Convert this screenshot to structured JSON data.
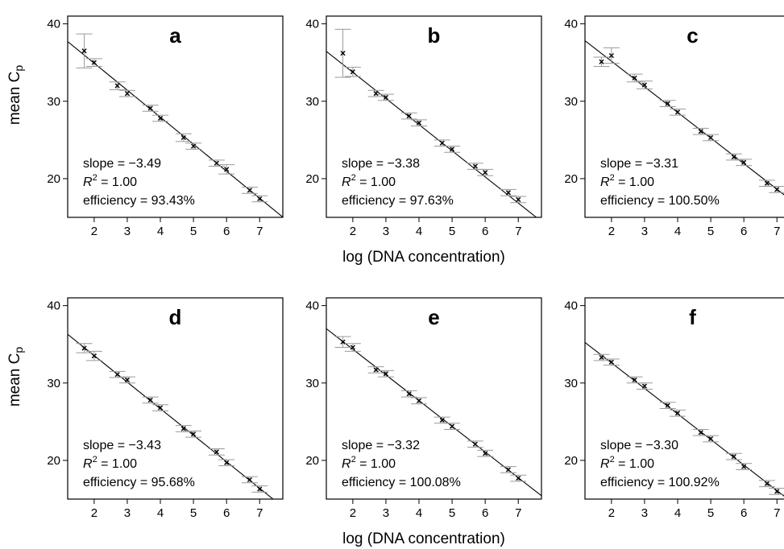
{
  "figure": {
    "xlabel": "log (DNA concentration)",
    "ylabel_main": "mean C",
    "ylabel_sub": "p"
  },
  "chart_data": [
    {
      "type": "scatter",
      "panel": "a",
      "xlim": [
        1.2,
        7.7
      ],
      "ylim": [
        15,
        41
      ],
      "xticks": [
        2,
        3,
        4,
        5,
        6,
        7
      ],
      "yticks": [
        20,
        30,
        40
      ],
      "points": [
        [
          1.7,
          36.5
        ],
        [
          2.0,
          35.0
        ],
        [
          2.7,
          32.0
        ],
        [
          3.0,
          31.0
        ],
        [
          3.7,
          29.1
        ],
        [
          4.0,
          27.8
        ],
        [
          4.7,
          25.3
        ],
        [
          5.0,
          24.2
        ],
        [
          5.7,
          22.0
        ],
        [
          6.0,
          21.2
        ],
        [
          6.7,
          18.5
        ],
        [
          7.0,
          17.4
        ]
      ],
      "errors": [
        2.2,
        0.5,
        0.5,
        0.4,
        0.4,
        0.4,
        0.5,
        0.4,
        0.4,
        0.6,
        0.4,
        0.4
      ],
      "fit": {
        "slope": -3.49,
        "intercept": 41.9
      },
      "annotations": {
        "slope": "slope = −3.49",
        "r2_value": " = 1.00",
        "efficiency": "efficiency = 93.43%"
      }
    },
    {
      "type": "scatter",
      "panel": "b",
      "xlim": [
        1.2,
        7.7
      ],
      "ylim": [
        15,
        41
      ],
      "xticks": [
        2,
        3,
        4,
        5,
        6,
        7
      ],
      "yticks": [
        20,
        30,
        40
      ],
      "points": [
        [
          1.7,
          36.2
        ],
        [
          2.0,
          33.8
        ],
        [
          2.7,
          31.0
        ],
        [
          3.0,
          30.5
        ],
        [
          3.7,
          28.1
        ],
        [
          4.0,
          27.2
        ],
        [
          4.7,
          24.6
        ],
        [
          5.0,
          23.8
        ],
        [
          5.7,
          21.6
        ],
        [
          6.0,
          20.8
        ],
        [
          6.7,
          18.2
        ],
        [
          7.0,
          17.3
        ]
      ],
      "errors": [
        3.1,
        0.6,
        0.4,
        0.4,
        0.4,
        0.4,
        0.4,
        0.4,
        0.4,
        0.4,
        0.4,
        0.4
      ],
      "fit": {
        "slope": -3.38,
        "intercept": 40.5
      },
      "annotations": {
        "slope": "slope = −3.38",
        "r2_value": " = 1.00",
        "efficiency": "efficiency = 97.63%"
      }
    },
    {
      "type": "scatter",
      "panel": "c",
      "xlim": [
        1.2,
        7.7
      ],
      "ylim": [
        15,
        41
      ],
      "xticks": [
        2,
        3,
        4,
        5,
        6,
        7
      ],
      "yticks": [
        20,
        30,
        40
      ],
      "points": [
        [
          1.7,
          35.1
        ],
        [
          2.0,
          35.9
        ],
        [
          2.7,
          33.0
        ],
        [
          3.0,
          32.1
        ],
        [
          3.7,
          29.7
        ],
        [
          4.0,
          28.6
        ],
        [
          4.7,
          26.1
        ],
        [
          5.0,
          25.3
        ],
        [
          5.7,
          22.8
        ],
        [
          6.0,
          22.1
        ],
        [
          6.7,
          19.4
        ],
        [
          7.0,
          18.6
        ]
      ],
      "errors": [
        0.6,
        1.0,
        0.5,
        0.5,
        0.4,
        0.4,
        0.4,
        0.4,
        0.4,
        0.4,
        0.4,
        0.4
      ],
      "fit": {
        "slope": -3.31,
        "intercept": 41.8
      },
      "annotations": {
        "slope": "slope = −3.31",
        "r2_value": " = 1.00",
        "efficiency": "efficiency = 100.50%"
      }
    },
    {
      "type": "scatter",
      "panel": "d",
      "xlim": [
        1.2,
        7.7
      ],
      "ylim": [
        15,
        41
      ],
      "xticks": [
        2,
        3,
        4,
        5,
        6,
        7
      ],
      "yticks": [
        20,
        30,
        40
      ],
      "points": [
        [
          1.7,
          34.5
        ],
        [
          2.0,
          33.5
        ],
        [
          2.7,
          31.1
        ],
        [
          3.0,
          30.4
        ],
        [
          3.7,
          27.8
        ],
        [
          4.0,
          26.8
        ],
        [
          4.7,
          24.1
        ],
        [
          5.0,
          23.4
        ],
        [
          5.7,
          21.1
        ],
        [
          6.0,
          19.7
        ],
        [
          6.7,
          17.5
        ],
        [
          7.0,
          16.3
        ]
      ],
      "errors": [
        0.6,
        0.6,
        0.4,
        0.4,
        0.4,
        0.4,
        0.4,
        0.4,
        0.4,
        0.4,
        0.4,
        0.4
      ],
      "fit": {
        "slope": -3.43,
        "intercept": 40.4
      },
      "annotations": {
        "slope": "slope = −3.43",
        "r2_value": " = 1.00",
        "efficiency": "efficiency = 95.68%"
      }
    },
    {
      "type": "scatter",
      "panel": "e",
      "xlim": [
        1.2,
        7.7
      ],
      "ylim": [
        15,
        41
      ],
      "xticks": [
        2,
        3,
        4,
        5,
        6,
        7
      ],
      "yticks": [
        20,
        30,
        40
      ],
      "points": [
        [
          1.7,
          35.3
        ],
        [
          2.0,
          34.6
        ],
        [
          2.7,
          31.7
        ],
        [
          3.0,
          31.2
        ],
        [
          3.7,
          28.6
        ],
        [
          4.0,
          27.7
        ],
        [
          4.7,
          25.2
        ],
        [
          5.0,
          24.4
        ],
        [
          5.7,
          22.1
        ],
        [
          6.0,
          20.9
        ],
        [
          6.7,
          18.8
        ],
        [
          7.0,
          17.7
        ]
      ],
      "errors": [
        0.7,
        0.5,
        0.4,
        0.4,
        0.4,
        0.4,
        0.4,
        0.4,
        0.4,
        0.4,
        0.4,
        0.4
      ],
      "fit": {
        "slope": -3.32,
        "intercept": 41.0
      },
      "annotations": {
        "slope": "slope = −3.32",
        "r2_value": " = 1.00",
        "efficiency": "efficiency = 100.08%"
      }
    },
    {
      "type": "scatter",
      "panel": "f",
      "xlim": [
        1.2,
        7.7
      ],
      "ylim": [
        15,
        41
      ],
      "xticks": [
        2,
        3,
        4,
        5,
        6,
        7
      ],
      "yticks": [
        20,
        30,
        40
      ],
      "points": [
        [
          1.7,
          33.3
        ],
        [
          2.0,
          32.7
        ],
        [
          2.7,
          30.4
        ],
        [
          3.0,
          29.6
        ],
        [
          3.7,
          27.1
        ],
        [
          4.0,
          26.1
        ],
        [
          4.7,
          23.6
        ],
        [
          5.0,
          22.8
        ],
        [
          5.7,
          20.5
        ],
        [
          6.0,
          19.2
        ],
        [
          6.7,
          17.0
        ],
        [
          7.0,
          16.0
        ]
      ],
      "errors": [
        0.4,
        0.4,
        0.4,
        0.4,
        0.4,
        0.4,
        0.4,
        0.4,
        0.4,
        0.4,
        0.4,
        0.4
      ],
      "fit": {
        "slope": -3.3,
        "intercept": 39.2
      },
      "annotations": {
        "slope": "slope = −3.30",
        "r2_value": " = 1.00",
        "efficiency": "efficiency = 100.92%"
      }
    }
  ]
}
